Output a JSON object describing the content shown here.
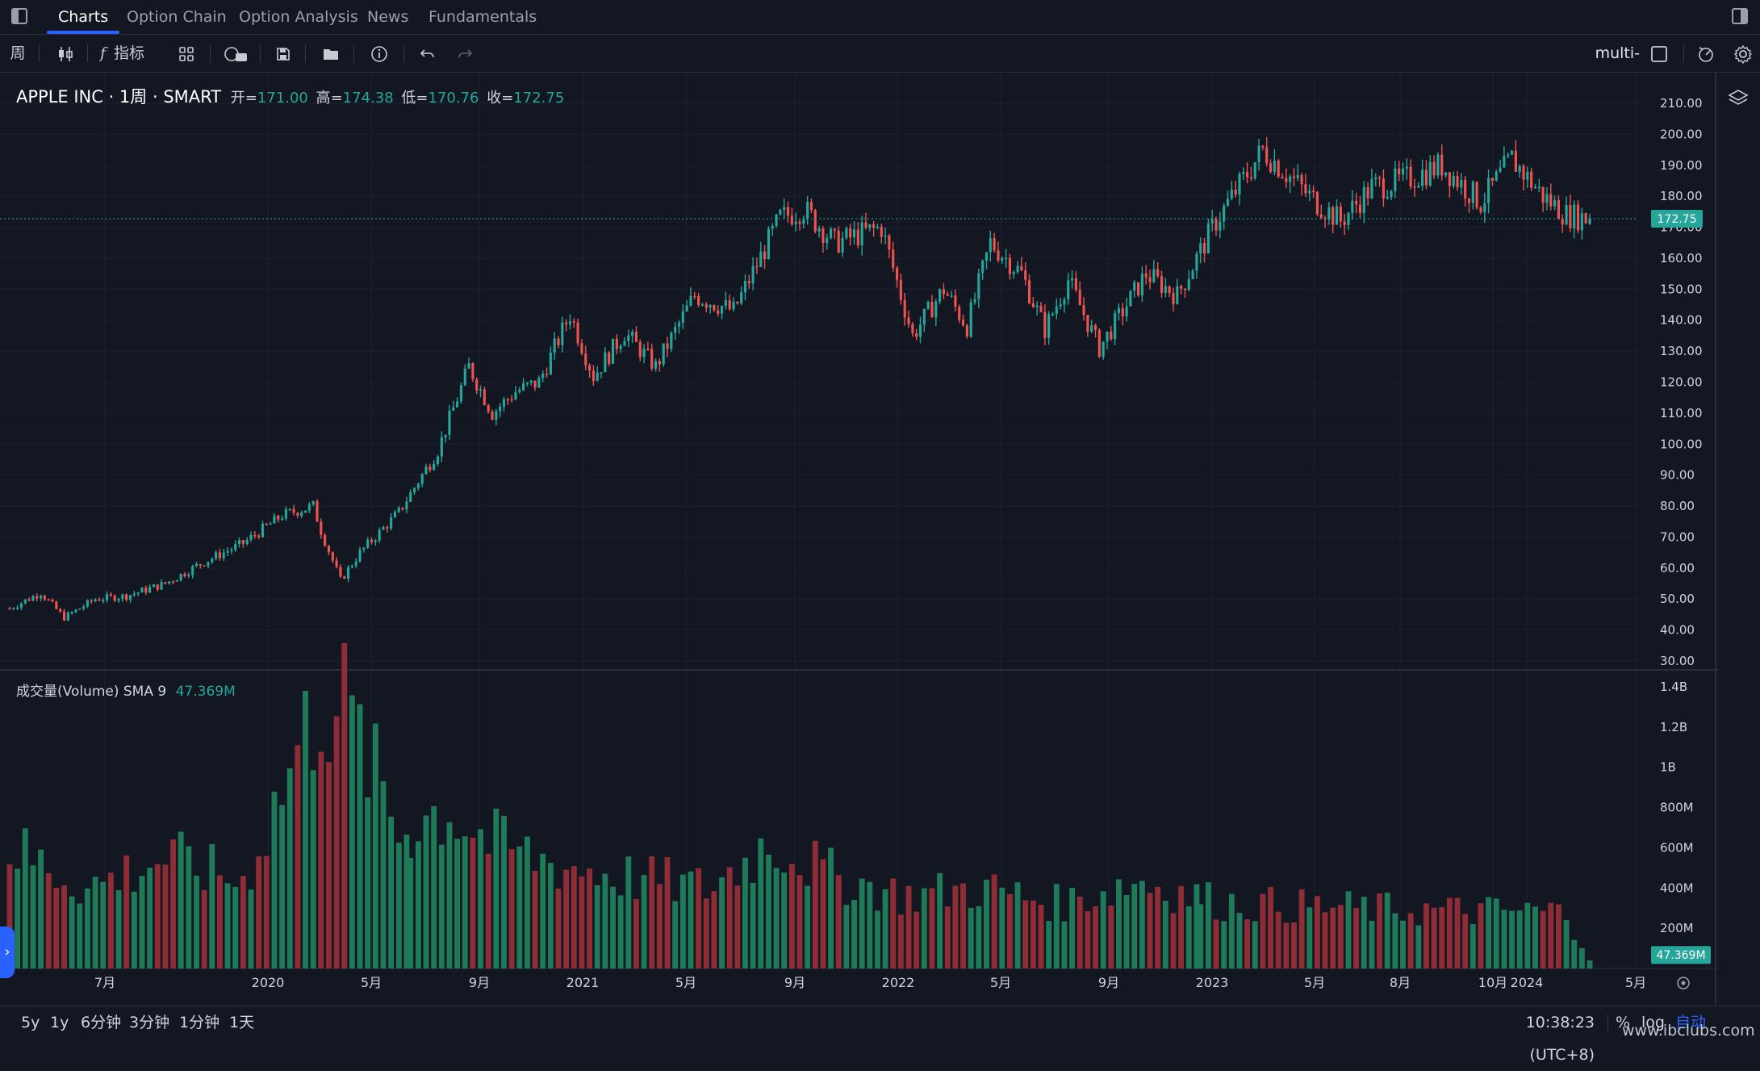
{
  "topbar": {
    "tabs": [
      {
        "label": "Charts",
        "active": true
      },
      {
        "label": "Option Chain",
        "active": false
      },
      {
        "label": "Option Analysis",
        "active": false
      },
      {
        "label": "News",
        "active": false
      },
      {
        "label": "Fundamentals",
        "active": false
      }
    ]
  },
  "toolbar": {
    "interval": "周",
    "indicators_label": "指标",
    "multi_chart_label": "multi-chart"
  },
  "legend": {
    "symbol": "APPLE INC · 1周 · SMART",
    "open_label": "开=",
    "open_value": "171.00",
    "high_label": "高=",
    "high_value": "174.38",
    "low_label": "低=",
    "low_value": "170.76",
    "close_label": "收=",
    "close_value": "172.75"
  },
  "volume_legend": {
    "title": "成交量(Volume) SMA 9",
    "value": "47.369M"
  },
  "price_axis": {
    "ticks": [
      "210.00",
      "200.00",
      "190.00",
      "180.00",
      "170.00",
      "160.00",
      "150.00",
      "140.00",
      "130.00",
      "120.00",
      "110.00",
      "100.00",
      "90.00",
      "80.00",
      "70.00",
      "60.00",
      "50.00",
      "40.00",
      "30.00"
    ],
    "current_price": "172.75"
  },
  "volume_axis": {
    "ticks": [
      "1.4B",
      "1.2B",
      "1B",
      "800M",
      "600M",
      "400M",
      "200M"
    ],
    "current_volume": "47.369M"
  },
  "time_axis": {
    "labels": [
      "7月",
      "2020",
      "5月",
      "9月",
      "2021",
      "5月",
      "9月",
      "2022",
      "5月",
      "9月",
      "2023",
      "5月",
      "8月",
      "10月",
      "2024",
      "5月"
    ]
  },
  "bottombar": {
    "ranges": [
      "5y",
      "1y",
      "6分钟",
      "3分钟",
      "1分钟",
      "1天"
    ],
    "clock": "10:38:23 (UTC+8)",
    "percent": "%",
    "log": "log",
    "auto": "自动"
  },
  "watermark": "www.ibclubs.com",
  "colors": {
    "background": "#131722",
    "up": "#26a69a",
    "down": "#ef5350",
    "accent": "#2962ff",
    "volume_up": "#1f7a5a",
    "volume_down": "#8f2d36"
  },
  "chart_data": {
    "type": "candlestick",
    "title": "APPLE INC · 1周 · SMART",
    "x_labels": [
      "7月",
      "2020",
      "5月",
      "9月",
      "2021",
      "5月",
      "9月",
      "2022",
      "5月",
      "9月",
      "2023",
      "5月",
      "8月",
      "10月",
      "2024",
      "5月"
    ],
    "anchors": [
      [
        0,
        47
      ],
      [
        8,
        52
      ],
      [
        14,
        44
      ],
      [
        22,
        50
      ],
      [
        30,
        51
      ],
      [
        40,
        55
      ],
      [
        50,
        62
      ],
      [
        60,
        68
      ],
      [
        70,
        77
      ],
      [
        78,
        80
      ],
      [
        80,
        72
      ],
      [
        85,
        56
      ],
      [
        90,
        65
      ],
      [
        100,
        78
      ],
      [
        110,
        98
      ],
      [
        118,
        125
      ],
      [
        124,
        110
      ],
      [
        130,
        117
      ],
      [
        136,
        120
      ],
      [
        144,
        142
      ],
      [
        150,
        122
      ],
      [
        158,
        136
      ],
      [
        166,
        125
      ],
      [
        176,
        148
      ],
      [
        186,
        143
      ],
      [
        198,
        173
      ],
      [
        204,
        176
      ],
      [
        212,
        165
      ],
      [
        224,
        170
      ],
      [
        232,
        135
      ],
      [
        240,
        150
      ],
      [
        246,
        138
      ],
      [
        252,
        165
      ],
      [
        260,
        155
      ],
      [
        266,
        137
      ],
      [
        272,
        153
      ],
      [
        280,
        131
      ],
      [
        292,
        155
      ],
      [
        300,
        148
      ],
      [
        310,
        172
      ],
      [
        322,
        195
      ],
      [
        334,
        180
      ],
      [
        342,
        172
      ],
      [
        350,
        183
      ],
      [
        358,
        185
      ],
      [
        368,
        190
      ],
      [
        378,
        178
      ],
      [
        386,
        192
      ],
      [
        394,
        180
      ],
      [
        400,
        174
      ],
      [
        406,
        172.75
      ]
    ],
    "volume_anchors": [
      [
        0,
        600
      ],
      [
        20,
        400
      ],
      [
        40,
        550
      ],
      [
        60,
        430
      ],
      [
        80,
        1350
      ],
      [
        86,
        1300
      ],
      [
        100,
        680
      ],
      [
        112,
        800
      ],
      [
        124,
        620
      ],
      [
        140,
        520
      ],
      [
        160,
        450
      ],
      [
        180,
        400
      ],
      [
        196,
        640
      ],
      [
        210,
        470
      ],
      [
        230,
        360
      ],
      [
        250,
        400
      ],
      [
        270,
        320
      ],
      [
        290,
        440
      ],
      [
        310,
        330
      ],
      [
        330,
        310
      ],
      [
        360,
        290
      ],
      [
        400,
        280
      ],
      [
        406,
        50
      ]
    ],
    "ylim": [
      30,
      210
    ],
    "volume_ylim": [
      0,
      1400
    ],
    "last": {
      "open": 171.0,
      "high": 174.38,
      "low": 170.76,
      "close": 172.75
    }
  }
}
